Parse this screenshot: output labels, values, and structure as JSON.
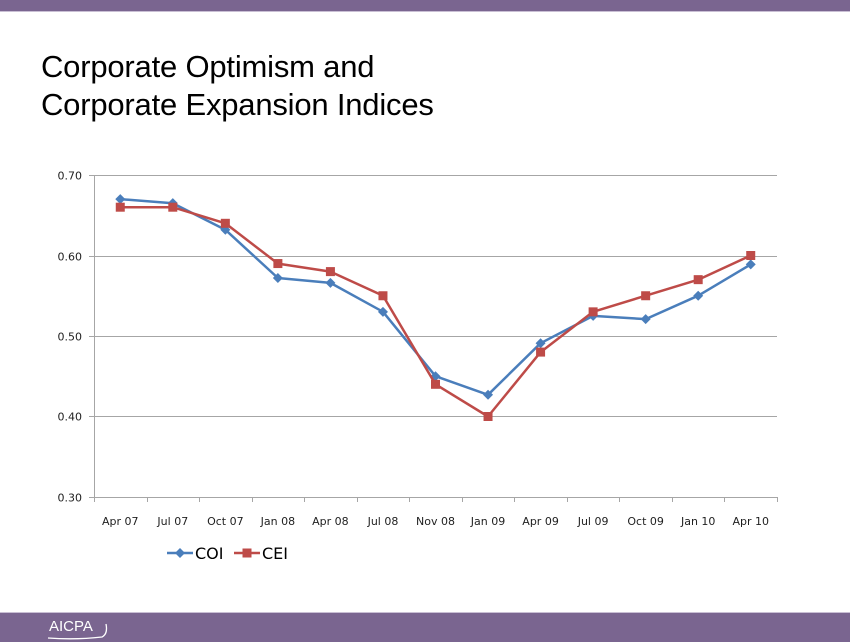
{
  "slide": {
    "title_lines": [
      "Corporate Optimism and",
      "Corporate Expansion Indices"
    ],
    "logo_text": "AICPA",
    "logo_mark": "®",
    "brand_color": "#7a6590"
  },
  "chart_data": {
    "type": "line",
    "title": "Corporate Optimism and Corporate Expansion Indices",
    "xlabel": "",
    "ylabel": "",
    "categories": [
      "Apr 07",
      "Jul 07",
      "Oct 07",
      "Jan 08",
      "Apr 08",
      "Jul 08",
      "Nov 08",
      "Jan 09",
      "Apr 09",
      "Jul 09",
      "Oct 09",
      "Jan 10",
      "Apr 10"
    ],
    "ylim": [
      0.3,
      0.7
    ],
    "yticks": [
      "0.30",
      "0.40",
      "0.50",
      "0.60",
      "0.70"
    ],
    "ytick_values": [
      0.3,
      0.4,
      0.5,
      0.6,
      0.7
    ],
    "grid": true,
    "legend_position": "bottom-left",
    "series": [
      {
        "name": "COI",
        "color": "#4a7ebb",
        "marker": "diamond",
        "values": [
          0.67,
          0.665,
          0.632,
          0.572,
          0.566,
          0.53,
          0.45,
          0.427,
          0.491,
          0.525,
          0.521,
          0.55,
          0.589
        ]
      },
      {
        "name": "CEI",
        "color": "#be4b48",
        "marker": "square",
        "values": [
          0.66,
          0.66,
          0.64,
          0.59,
          0.58,
          0.55,
          0.44,
          0.4,
          0.48,
          0.53,
          0.55,
          0.57,
          0.6
        ]
      }
    ]
  }
}
